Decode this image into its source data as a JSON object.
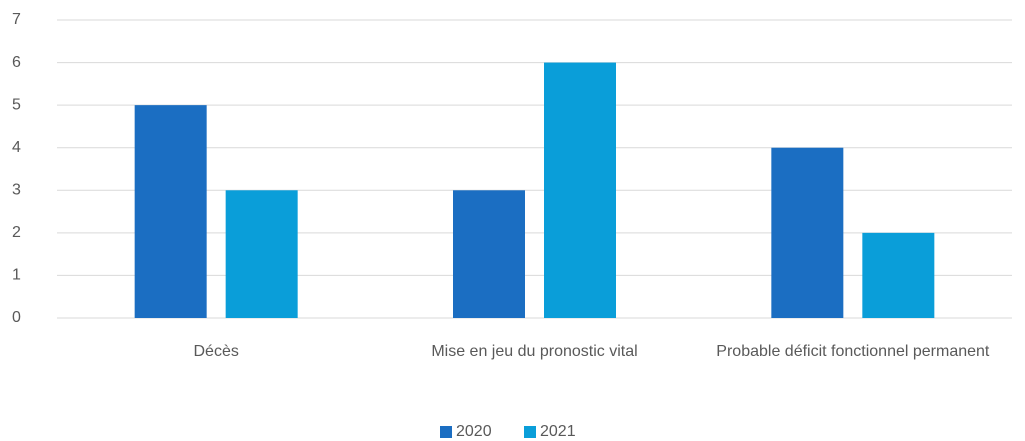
{
  "chart_data": {
    "type": "bar",
    "categories": [
      "Décès",
      "Mise en jeu du pronostic vital",
      "Probable déficit fonctionnel permanent"
    ],
    "series": [
      {
        "name": "2020",
        "color": "#1b6ec2",
        "values": [
          5,
          3,
          4
        ]
      },
      {
        "name": "2021",
        "color": "#0a9ed9",
        "values": [
          3,
          6,
          2
        ]
      }
    ],
    "ylim": [
      0,
      7
    ],
    "yticks": [
      0,
      1,
      2,
      3,
      4,
      5,
      6,
      7
    ],
    "grid": true,
    "legend": "bottom"
  }
}
